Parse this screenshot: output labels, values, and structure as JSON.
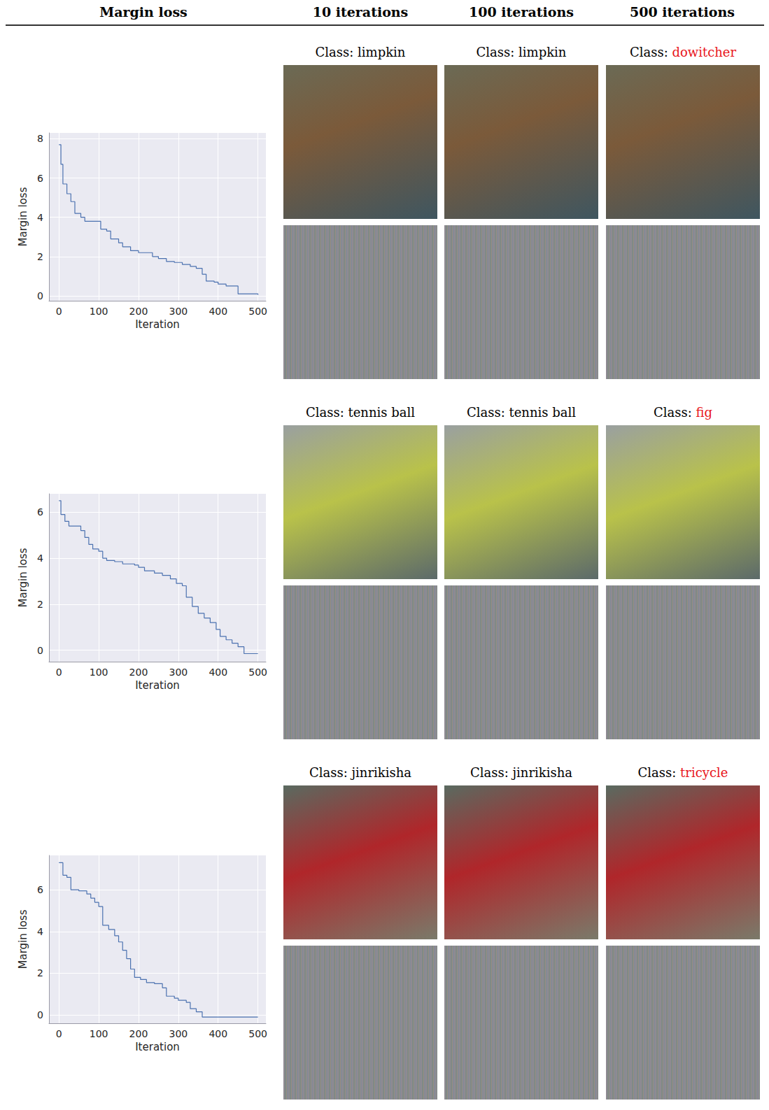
{
  "columns": [
    "Margin loss",
    "10 iterations",
    "100 iterations",
    "500 iterations"
  ],
  "label_prefix": "Class:",
  "panels": [
    [
      {
        "class": "limpkin",
        "color": "black"
      },
      {
        "class": "limpkin",
        "color": "black"
      },
      {
        "class": "dowitcher",
        "color": "red"
      }
    ],
    [
      {
        "class": "tennis ball",
        "color": "black"
      },
      {
        "class": "tennis ball",
        "color": "black"
      },
      {
        "class": "fig",
        "color": "red"
      }
    ],
    [
      {
        "class": "jinrikisha",
        "color": "black"
      },
      {
        "class": "jinrikisha",
        "color": "black"
      },
      {
        "class": "tricycle",
        "color": "red"
      }
    ]
  ],
  "chart_data": [
    {
      "type": "line",
      "xlabel": "Iteration",
      "ylabel": "Margin loss",
      "color": "#4c72b0",
      "line_style": "steps",
      "grid": true,
      "x": [
        0,
        5,
        10,
        20,
        30,
        40,
        55,
        65,
        100,
        105,
        120,
        130,
        150,
        160,
        180,
        200,
        225,
        235,
        250,
        270,
        290,
        310,
        330,
        345,
        360,
        370,
        390,
        400,
        420,
        450,
        490,
        500
      ],
      "values": [
        7.7,
        6.7,
        5.7,
        5.2,
        4.8,
        4.2,
        4.0,
        3.8,
        3.8,
        3.4,
        3.3,
        2.9,
        2.7,
        2.5,
        2.3,
        2.2,
        2.2,
        2.0,
        1.9,
        1.75,
        1.7,
        1.6,
        1.5,
        1.4,
        1.1,
        0.75,
        0.7,
        0.6,
        0.5,
        0.1,
        0.1,
        0.05
      ],
      "xlim": [
        -25,
        520
      ],
      "xticks": [
        0,
        100,
        200,
        300,
        400,
        500
      ],
      "ylim": [
        -0.25,
        8.3
      ],
      "yticks": [
        0,
        2,
        4,
        6,
        8
      ]
    },
    {
      "type": "line",
      "xlabel": "Iteration",
      "ylabel": "Margin loss",
      "color": "#4c72b0",
      "line_style": "steps",
      "grid": true,
      "x": [
        0,
        5,
        15,
        25,
        45,
        55,
        65,
        75,
        85,
        100,
        110,
        120,
        140,
        160,
        190,
        200,
        215,
        240,
        260,
        280,
        295,
        310,
        320,
        335,
        350,
        365,
        380,
        395,
        405,
        420,
        435,
        450,
        460,
        465,
        500
      ],
      "values": [
        6.5,
        5.9,
        5.6,
        5.4,
        5.4,
        5.2,
        4.9,
        4.6,
        4.4,
        4.3,
        4.0,
        3.9,
        3.85,
        3.75,
        3.7,
        3.6,
        3.45,
        3.35,
        3.25,
        3.1,
        2.9,
        2.8,
        2.3,
        1.9,
        1.6,
        1.4,
        1.2,
        0.9,
        0.6,
        0.45,
        0.3,
        0.15,
        0.15,
        -0.15,
        -0.15
      ],
      "xlim": [
        -25,
        520
      ],
      "xticks": [
        0,
        100,
        200,
        300,
        400,
        500
      ],
      "ylim": [
        -0.5,
        6.8
      ],
      "yticks": [
        0,
        2,
        4,
        6
      ]
    },
    {
      "type": "line",
      "xlabel": "Iteration",
      "ylabel": "Margin loss",
      "color": "#4c72b0",
      "line_style": "steps",
      "grid": true,
      "x": [
        0,
        10,
        20,
        30,
        50,
        70,
        80,
        90,
        100,
        110,
        125,
        140,
        150,
        160,
        170,
        180,
        190,
        205,
        220,
        240,
        260,
        270,
        290,
        300,
        320,
        330,
        345,
        360,
        500
      ],
      "values": [
        7.3,
        6.7,
        6.6,
        6.0,
        5.95,
        5.8,
        5.6,
        5.4,
        5.2,
        4.3,
        4.1,
        3.8,
        3.5,
        3.1,
        2.7,
        2.2,
        1.8,
        1.7,
        1.55,
        1.5,
        1.3,
        0.9,
        0.8,
        0.7,
        0.6,
        0.3,
        0.15,
        -0.1,
        -0.1
      ],
      "xlim": [
        -25,
        520
      ],
      "xticks": [
        0,
        100,
        200,
        300,
        400,
        500
      ],
      "ylim": [
        -0.4,
        7.65
      ],
      "yticks": [
        0,
        2,
        4,
        6
      ]
    }
  ]
}
